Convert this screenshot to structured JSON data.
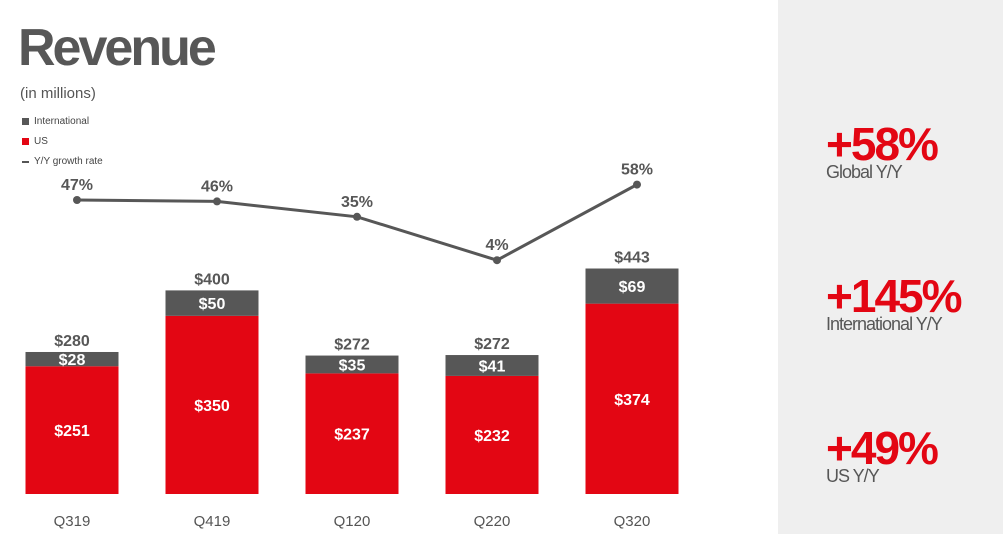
{
  "title": "Revenue",
  "subtitle": "(in millions)",
  "colors": {
    "international": "#575757",
    "us": "#e30613",
    "growth_line": "#575757",
    "panel_bg": "#efefef"
  },
  "chart_data": {
    "type": "bar",
    "stacked": true,
    "categories": [
      "Q319",
      "Q419",
      "Q120",
      "Q220",
      "Q320"
    ],
    "series": [
      {
        "name": "US",
        "values": [
          251,
          350,
          237,
          232,
          374
        ],
        "labels": [
          "$251",
          "$350",
          "$237",
          "$232",
          "$374"
        ]
      },
      {
        "name": "International",
        "values": [
          28,
          50,
          35,
          41,
          69
        ],
        "labels": [
          "$28",
          "$50",
          "$35",
          "$41",
          "$69"
        ]
      }
    ],
    "totals": [
      280,
      400,
      272,
      272,
      443
    ],
    "total_labels": [
      "$280",
      "$400",
      "$272",
      "$272",
      "$443"
    ],
    "line_series": {
      "name": "Y/Y growth rate",
      "values": [
        47,
        46,
        35,
        4,
        58
      ],
      "labels": [
        "47%",
        "46%",
        "35%",
        "4%",
        "58%"
      ]
    },
    "legend": [
      "International",
      "US",
      "Y/Y growth rate"
    ],
    "legend_position": "top-left",
    "grid": false
  },
  "stats": [
    {
      "value": "+58%",
      "label": "Global Y/Y"
    },
    {
      "value": "+145%",
      "label": "International Y/Y"
    },
    {
      "value": "+49%",
      "label": "US Y/Y"
    }
  ]
}
